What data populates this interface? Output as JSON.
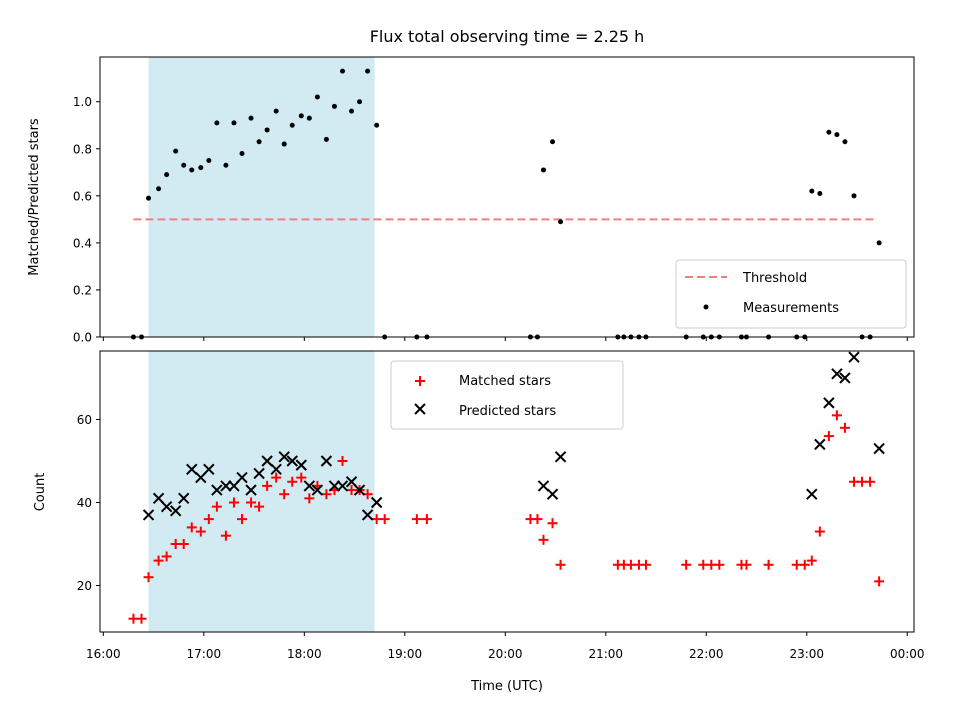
{
  "chart_data": {
    "title": "Flux total observing time = 2.25 h",
    "xlabel": "Time (UTC)",
    "x_unit": "hours",
    "xlim": [
      15.967,
      24.067
    ],
    "x_ticks": [
      {
        "value": 16,
        "label": "16:00"
      },
      {
        "value": 17,
        "label": "17:00"
      },
      {
        "value": 18,
        "label": "18:00"
      },
      {
        "value": 19,
        "label": "19:00"
      },
      {
        "value": 20,
        "label": "20:00"
      },
      {
        "value": 21,
        "label": "21:00"
      },
      {
        "value": 22,
        "label": "22:00"
      },
      {
        "value": 23,
        "label": "23:00"
      },
      {
        "value": 24,
        "label": "00:00"
      }
    ],
    "shaded_span": {
      "start": 16.45,
      "end": 18.7,
      "color": "#add8e6"
    },
    "panels": [
      {
        "type": "scatter",
        "ylabel": "Matched/Predicted stars",
        "ylim": [
          0,
          1.19
        ],
        "y_ticks": [
          "0.0",
          "0.2",
          "0.4",
          "0.6",
          "0.8",
          "1.0"
        ],
        "threshold": {
          "name": "Threshold",
          "value": 0.5,
          "x_range": [
            16.3,
            23.7
          ],
          "color": "#f08080"
        },
        "legend": {
          "position": "lower right",
          "entries": [
            "Threshold",
            "Measurements"
          ]
        },
        "series": [
          {
            "name": "Measurements",
            "color": "#000000",
            "points": [
              [
                16.3,
                0.0
              ],
              [
                16.38,
                0.0
              ],
              [
                16.45,
                0.59
              ],
              [
                16.55,
                0.63
              ],
              [
                16.63,
                0.69
              ],
              [
                16.72,
                0.79
              ],
              [
                16.8,
                0.73
              ],
              [
                16.88,
                0.71
              ],
              [
                16.97,
                0.72
              ],
              [
                17.05,
                0.75
              ],
              [
                17.13,
                0.91
              ],
              [
                17.22,
                0.73
              ],
              [
                17.3,
                0.91
              ],
              [
                17.38,
                0.78
              ],
              [
                17.47,
                0.93
              ],
              [
                17.55,
                0.83
              ],
              [
                17.63,
                0.88
              ],
              [
                17.72,
                0.96
              ],
              [
                17.8,
                0.82
              ],
              [
                17.88,
                0.9
              ],
              [
                17.97,
                0.94
              ],
              [
                18.05,
                0.93
              ],
              [
                18.13,
                1.02
              ],
              [
                18.22,
                0.84
              ],
              [
                18.3,
                0.98
              ],
              [
                18.38,
                1.13
              ],
              [
                18.47,
                0.96
              ],
              [
                18.55,
                1.0
              ],
              [
                18.63,
                1.13
              ],
              [
                18.72,
                0.9
              ],
              [
                18.8,
                0.0
              ],
              [
                19.12,
                0.0
              ],
              [
                19.22,
                0.0
              ],
              [
                20.25,
                0.0
              ],
              [
                20.32,
                0.0
              ],
              [
                20.38,
                0.71
              ],
              [
                20.47,
                0.83
              ],
              [
                20.55,
                0.49
              ],
              [
                21.12,
                0.0
              ],
              [
                21.18,
                0.0
              ],
              [
                21.25,
                0.0
              ],
              [
                21.33,
                0.0
              ],
              [
                21.4,
                0.0
              ],
              [
                21.8,
                0.0
              ],
              [
                21.97,
                0.0
              ],
              [
                22.05,
                0.0
              ],
              [
                22.13,
                0.0
              ],
              [
                22.35,
                0.0
              ],
              [
                22.4,
                0.0
              ],
              [
                22.62,
                0.0
              ],
              [
                22.9,
                0.0
              ],
              [
                22.98,
                0.0
              ],
              [
                23.05,
                0.62
              ],
              [
                23.13,
                0.61
              ],
              [
                23.22,
                0.87
              ],
              [
                23.3,
                0.86
              ],
              [
                23.38,
                0.83
              ],
              [
                23.47,
                0.6
              ],
              [
                23.55,
                0.0
              ],
              [
                23.63,
                0.0
              ],
              [
                23.72,
                0.4
              ]
            ]
          }
        ]
      },
      {
        "type": "scatter",
        "ylabel": "Count",
        "ylim": [
          8.8,
          76.5
        ],
        "y_ticks": [
          "20",
          "40",
          "60"
        ],
        "legend": {
          "position": "upper center",
          "entries": [
            "Matched stars",
            "Predicted stars"
          ]
        },
        "series": [
          {
            "name": "Matched stars",
            "marker": "plus",
            "color": "#ff0000",
            "points": [
              [
                16.3,
                12
              ],
              [
                16.38,
                12
              ],
              [
                16.45,
                22
              ],
              [
                16.55,
                26
              ],
              [
                16.63,
                27
              ],
              [
                16.72,
                30
              ],
              [
                16.8,
                30
              ],
              [
                16.88,
                34
              ],
              [
                16.97,
                33
              ],
              [
                17.05,
                36
              ],
              [
                17.13,
                39
              ],
              [
                17.22,
                32
              ],
              [
                17.3,
                40
              ],
              [
                17.38,
                36
              ],
              [
                17.47,
                40
              ],
              [
                17.55,
                39
              ],
              [
                17.63,
                44
              ],
              [
                17.72,
                46
              ],
              [
                17.8,
                42
              ],
              [
                17.88,
                45
              ],
              [
                17.97,
                46
              ],
              [
                18.05,
                41
              ],
              [
                18.13,
                44
              ],
              [
                18.22,
                42
              ],
              [
                18.3,
                43
              ],
              [
                18.38,
                50
              ],
              [
                18.47,
                43
              ],
              [
                18.55,
                43
              ],
              [
                18.63,
                42
              ],
              [
                18.72,
                36
              ],
              [
                18.8,
                36
              ],
              [
                19.12,
                36
              ],
              [
                19.22,
                36
              ],
              [
                20.25,
                36
              ],
              [
                20.32,
                36
              ],
              [
                20.38,
                31
              ],
              [
                20.47,
                35
              ],
              [
                20.55,
                25
              ],
              [
                21.12,
                25
              ],
              [
                21.18,
                25
              ],
              [
                21.25,
                25
              ],
              [
                21.33,
                25
              ],
              [
                21.4,
                25
              ],
              [
                21.8,
                25
              ],
              [
                21.97,
                25
              ],
              [
                22.05,
                25
              ],
              [
                22.13,
                25
              ],
              [
                22.35,
                25
              ],
              [
                22.4,
                25
              ],
              [
                22.62,
                25
              ],
              [
                22.9,
                25
              ],
              [
                22.98,
                25
              ],
              [
                23.05,
                26
              ],
              [
                23.13,
                33
              ],
              [
                23.22,
                56
              ],
              [
                23.3,
                61
              ],
              [
                23.38,
                58
              ],
              [
                23.47,
                45
              ],
              [
                23.55,
                45
              ],
              [
                23.63,
                45
              ],
              [
                23.72,
                21
              ]
            ]
          },
          {
            "name": "Predicted stars",
            "marker": "x",
            "color": "#000000",
            "points": [
              [
                16.45,
                37
              ],
              [
                16.55,
                41
              ],
              [
                16.63,
                39
              ],
              [
                16.72,
                38
              ],
              [
                16.8,
                41
              ],
              [
                16.88,
                48
              ],
              [
                16.97,
                46
              ],
              [
                17.05,
                48
              ],
              [
                17.13,
                43
              ],
              [
                17.22,
                44
              ],
              [
                17.3,
                44
              ],
              [
                17.38,
                46
              ],
              [
                17.47,
                43
              ],
              [
                17.55,
                47
              ],
              [
                17.63,
                50
              ],
              [
                17.72,
                48
              ],
              [
                17.8,
                51
              ],
              [
                17.88,
                50
              ],
              [
                17.97,
                49
              ],
              [
                18.05,
                44
              ],
              [
                18.13,
                43
              ],
              [
                18.22,
                50
              ],
              [
                18.3,
                44
              ],
              [
                18.38,
                44
              ],
              [
                18.47,
                45
              ],
              [
                18.55,
                43
              ],
              [
                18.63,
                37
              ],
              [
                18.72,
                40
              ],
              [
                20.38,
                44
              ],
              [
                20.47,
                42
              ],
              [
                20.55,
                51
              ],
              [
                23.05,
                42
              ],
              [
                23.13,
                54
              ],
              [
                23.22,
                64
              ],
              [
                23.3,
                71
              ],
              [
                23.38,
                70
              ],
              [
                23.47,
                75
              ],
              [
                23.72,
                53
              ]
            ]
          }
        ]
      }
    ]
  }
}
